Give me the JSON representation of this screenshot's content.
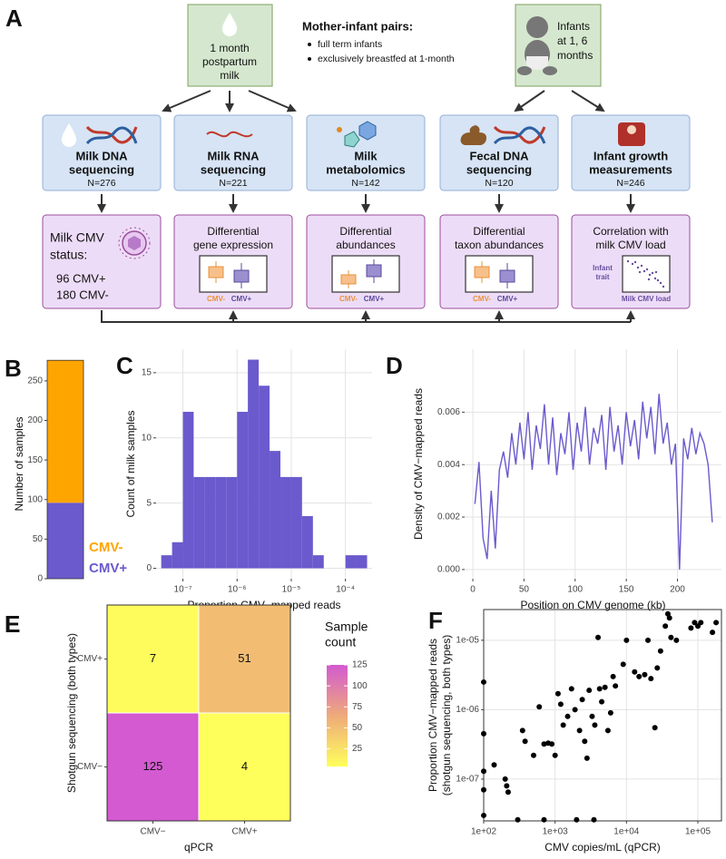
{
  "diagram": {
    "panel_label": "A",
    "sources": [
      {
        "lines": [
          "1 month",
          "postpartum",
          "milk"
        ]
      },
      {
        "lines": [
          "Infants",
          "at 1, 6",
          "months"
        ]
      }
    ],
    "cohort": {
      "title": "Mother-infant pairs:",
      "bullets": [
        "full term infants",
        "exclusively breastfed at 1-month"
      ]
    },
    "assays": [
      {
        "lines": [
          "Milk DNA",
          "sequencing"
        ],
        "n": "N=276"
      },
      {
        "lines": [
          "Milk RNA",
          "sequencing"
        ],
        "n": "N=221"
      },
      {
        "lines": [
          "Milk",
          "metabolomics"
        ],
        "n": "N=142"
      },
      {
        "lines": [
          "Fecal DNA",
          "sequencing"
        ],
        "n": "N=120"
      },
      {
        "lines": [
          "Infant growth",
          "measurements"
        ],
        "n": "N=246"
      }
    ],
    "analyses": [
      {
        "lines": [
          "Milk CMV",
          "status:"
        ],
        "counts": [
          "96 CMV+",
          "180 CMV-"
        ]
      },
      {
        "lines": [
          "Differential",
          "gene expression"
        ],
        "groups": [
          "CMV-",
          "CMV+"
        ]
      },
      {
        "lines": [
          "Differential",
          "abundances"
        ],
        "groups": [
          "CMV-",
          "CMV+"
        ]
      },
      {
        "lines": [
          "Differential",
          "taxon abundances"
        ],
        "groups": [
          "CMV-",
          "CMV+"
        ]
      },
      {
        "lines": [
          "Correlation with",
          "milk CMV load"
        ],
        "y_axis": [
          "Infant",
          "trait"
        ],
        "x_axis": "Milk CMV load"
      }
    ]
  },
  "chart_data": [
    {
      "type": "stacked_bar",
      "panel_label": "B",
      "y_label": "Number of samples",
      "series": [
        {
          "name": "CMV+",
          "color": "#6a5acd",
          "values": [
            96
          ]
        },
        {
          "name": "CMV-",
          "color": "#ffa500",
          "values": [
            180
          ]
        }
      ],
      "ylim": [
        0,
        290
      ],
      "yticks": [
        0,
        50,
        100,
        150,
        200,
        250
      ],
      "grid": false
    },
    {
      "type": "histogram",
      "panel_label": "C",
      "x_label": "Proportion CMV−mapped reads",
      "y_label": "Count of milk samples",
      "color": "#6a5acd",
      "x_log": true,
      "bins": [
        3.98e-08,
        6.31e-08,
        1e-07,
        1.58e-07,
        2.51e-07,
        3.98e-07,
        6.31e-07,
        1e-06,
        1.58e-06,
        2.51e-06,
        3.98e-06,
        6.31e-06,
        1e-05,
        1.58e-05,
        2.51e-05,
        3.98e-05,
        6.31e-05,
        0.0001,
        0.000158,
        0.000251
      ],
      "counts": [
        1,
        2,
        12,
        7,
        7,
        7,
        7,
        12,
        16,
        14,
        9,
        7,
        7,
        4,
        1,
        0,
        0,
        1,
        1
      ],
      "xlim": [
        3.2e-08,
        0.00031
      ],
      "ylim": [
        -0.8,
        16.8
      ],
      "xticks": [
        {
          "value": 1e-07,
          "label": "10⁻⁷"
        },
        {
          "value": 1e-06,
          "label": "10⁻⁶"
        },
        {
          "value": 1e-05,
          "label": "10⁻⁵"
        },
        {
          "value": 0.0001,
          "label": "10⁻⁴"
        }
      ],
      "yticks": [
        0,
        5,
        10,
        15
      ],
      "grid": true
    },
    {
      "type": "line",
      "panel_label": "D",
      "x_label": "Position on CMV genome (kb)",
      "y_label": "Density of CMV−mapped reads",
      "color": "#6a5acd",
      "x": [
        2,
        6,
        10,
        14,
        18,
        22,
        26,
        30,
        34,
        38,
        42,
        46,
        50,
        54,
        58,
        62,
        66,
        70,
        74,
        78,
        82,
        86,
        90,
        94,
        98,
        102,
        106,
        110,
        114,
        118,
        122,
        126,
        130,
        134,
        138,
        142,
        146,
        150,
        154,
        158,
        162,
        166,
        170,
        174,
        178,
        182,
        186,
        190,
        194,
        198,
        202,
        206,
        210,
        214,
        218,
        222,
        226,
        230,
        234
      ],
      "values": [
        0.0025,
        0.0041,
        0.0012,
        0.0004,
        0.003,
        0.0008,
        0.0038,
        0.0045,
        0.0035,
        0.0052,
        0.004,
        0.0056,
        0.0042,
        0.006,
        0.0038,
        0.0055,
        0.0046,
        0.0063,
        0.004,
        0.0058,
        0.0036,
        0.0052,
        0.0044,
        0.006,
        0.0038,
        0.0056,
        0.0045,
        0.0062,
        0.004,
        0.0054,
        0.0048,
        0.0059,
        0.0038,
        0.0062,
        0.0045,
        0.0055,
        0.004,
        0.006,
        0.0047,
        0.0057,
        0.0042,
        0.0064,
        0.005,
        0.0062,
        0.0044,
        0.0067,
        0.0048,
        0.0056,
        0.004,
        0.0048,
        0.0,
        0.005,
        0.0042,
        0.0054,
        0.0044,
        0.0052,
        0.0048,
        0.004,
        0.0018
      ],
      "xlim": [
        -8,
        243
      ],
      "ylim": [
        -0.00035,
        0.0084
      ],
      "xticks": [
        0,
        50,
        100,
        150,
        200
      ],
      "yticks": [
        {
          "value": 0,
          "label": "0.000"
        },
        {
          "value": 0.002,
          "label": "0.002"
        },
        {
          "value": 0.004,
          "label": "0.004"
        },
        {
          "value": 0.006,
          "label": "0.006"
        }
      ],
      "grid": true
    },
    {
      "type": "heatmap",
      "panel_label": "E",
      "x_label": "qPCR",
      "y_label": "Shotgun sequencing (both types)",
      "x_categories": [
        "CMV−",
        "CMV+"
      ],
      "y_categories": [
        "CMV−",
        "CMV+"
      ],
      "values": [
        [
          125,
          4
        ],
        [
          7,
          51
        ]
      ],
      "legend_title": [
        "Sample",
        "count"
      ],
      "colorscale": [
        "#ffff5c",
        "#eeaa7a",
        "#d35ad0"
      ],
      "clim": [
        4,
        125
      ],
      "cticks": [
        25,
        50,
        75,
        100,
        125
      ]
    },
    {
      "type": "scatter",
      "panel_label": "F",
      "x_label": "CMV copies/mL (qPCR)",
      "y_label": [
        "Proportion CMV−mapped reads",
        "(shotgun sequencing, both types)"
      ],
      "color": "#000000",
      "x_log": true,
      "y_log": true,
      "x": [
        100,
        100,
        100,
        100,
        100,
        140,
        200,
        210,
        220,
        350,
        380,
        500,
        600,
        700,
        800,
        900,
        1000,
        1100,
        1200,
        1300,
        1500,
        1700,
        1900,
        2200,
        2400,
        2600,
        2800,
        3000,
        3300,
        3600,
        4000,
        4200,
        4500,
        5000,
        5500,
        6000,
        6500,
        7000,
        9000,
        10000,
        13000,
        15000,
        18000,
        20000,
        22000,
        25000,
        27000,
        30000,
        35000,
        38000,
        40000,
        42000,
        50000,
        80000,
        90000,
        100000,
        110000,
        160000,
        180000,
        300,
        700,
        2000,
        3500
      ],
      "y": [
        2.5e-06,
        4.5e-07,
        1.3e-07,
        7e-08,
        3e-08,
        1.6e-07,
        1e-07,
        8e-08,
        6.5e-08,
        5e-07,
        3.5e-07,
        2.2e-07,
        1.1e-06,
        3.2e-07,
        3.3e-07,
        3.2e-07,
        2.2e-07,
        1.7e-06,
        1.2e-06,
        6e-07,
        8e-07,
        2e-06,
        1e-06,
        5e-07,
        1.4e-06,
        3.5e-07,
        2e-07,
        1.9e-06,
        8e-07,
        6e-07,
        1.1e-05,
        2e-06,
        1.3e-06,
        2.1e-06,
        5e-07,
        9e-07,
        3e-06,
        2.2e-06,
        4.5e-06,
        1e-05,
        3.5e-06,
        3e-06,
        3.2e-06,
        1e-05,
        2.8e-06,
        5.5e-07,
        4e-06,
        7e-06,
        1.6e-05,
        2.4e-05,
        2.1e-05,
        1.1e-05,
        1e-05,
        1.5e-05,
        1.8e-05,
        1.6e-05,
        1.8e-05,
        1.3e-05,
        1.8e-05,
        2.6e-08,
        2.6e-08,
        2.6e-08,
        2.6e-08
      ],
      "xlim": [
        100,
        214000
      ],
      "ylim": [
        2.5e-08,
        2.77e-05
      ],
      "xticks": [
        {
          "value": 100,
          "label": "1e+02"
        },
        {
          "value": 1000,
          "label": "1e+03"
        },
        {
          "value": 10000,
          "label": "1e+04"
        },
        {
          "value": 100000,
          "label": "1e+05"
        }
      ],
      "yticks": [
        {
          "value": 1e-07,
          "label": "1e-07"
        },
        {
          "value": 1e-06,
          "label": "1e-06"
        },
        {
          "value": 1e-05,
          "label": "1e-05"
        }
      ],
      "grid": true
    }
  ]
}
